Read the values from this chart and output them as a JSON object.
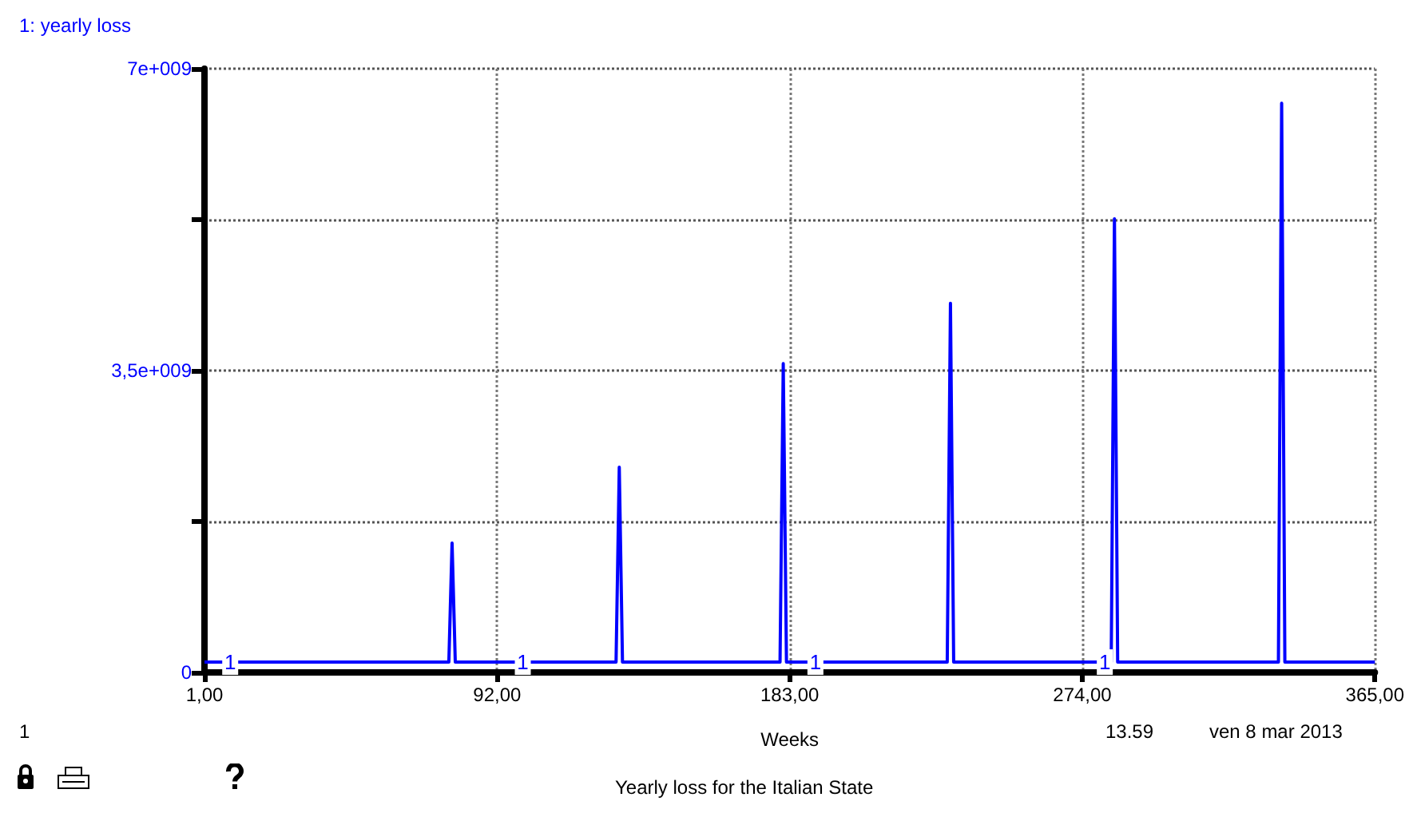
{
  "chart_data": {
    "type": "line",
    "title": "Yearly loss for the Italian State",
    "xlabel": "Weeks",
    "x": [
      1,
      77,
      78,
      79,
      129,
      130,
      131,
      180,
      181,
      182,
      232,
      233,
      234,
      283,
      284,
      285,
      335,
      336,
      337,
      365
    ],
    "series": [
      {
        "name": "1: yearly loss",
        "color": "#0000ff",
        "values": [
          120000000,
          120000000,
          1500000000,
          120000000,
          120000000,
          2380000000,
          120000000,
          120000000,
          3580000000,
          120000000,
          120000000,
          4280000000,
          120000000,
          120000000,
          5260000000,
          120000000,
          120000000,
          6600000000,
          120000000,
          120000000
        ]
      }
    ],
    "xlim": [
      1,
      365
    ],
    "xticks": [
      {
        "value": 1,
        "label": "1,00"
      },
      {
        "value": 92,
        "label": "92,00"
      },
      {
        "value": 183,
        "label": "183,00"
      },
      {
        "value": 274,
        "label": "274,00"
      },
      {
        "value": 365,
        "label": "365,00"
      }
    ],
    "ylim": [
      0,
      7000000000
    ],
    "yticks": [
      0,
      {
        "value": 1750000000,
        "label": null
      },
      {
        "value": 3500000000,
        "label": "3,5e+009"
      },
      {
        "value": 5250000000,
        "label": null
      },
      {
        "value": 7000000000,
        "label": "7e+009"
      }
    ],
    "grid": true,
    "legend": "top left",
    "marker": "none",
    "line_style": "solid",
    "annotations": [
      {
        "text": "1",
        "x": 9,
        "y": 120000000
      },
      {
        "text": "1",
        "x": 100,
        "y": 120000000
      },
      {
        "text": "1",
        "x": 191,
        "y": 120000000
      },
      {
        "text": "1",
        "x": 281,
        "y": 120000000
      },
      "1",
      "13.59",
      "ven 8 mar 2013"
    ]
  }
}
